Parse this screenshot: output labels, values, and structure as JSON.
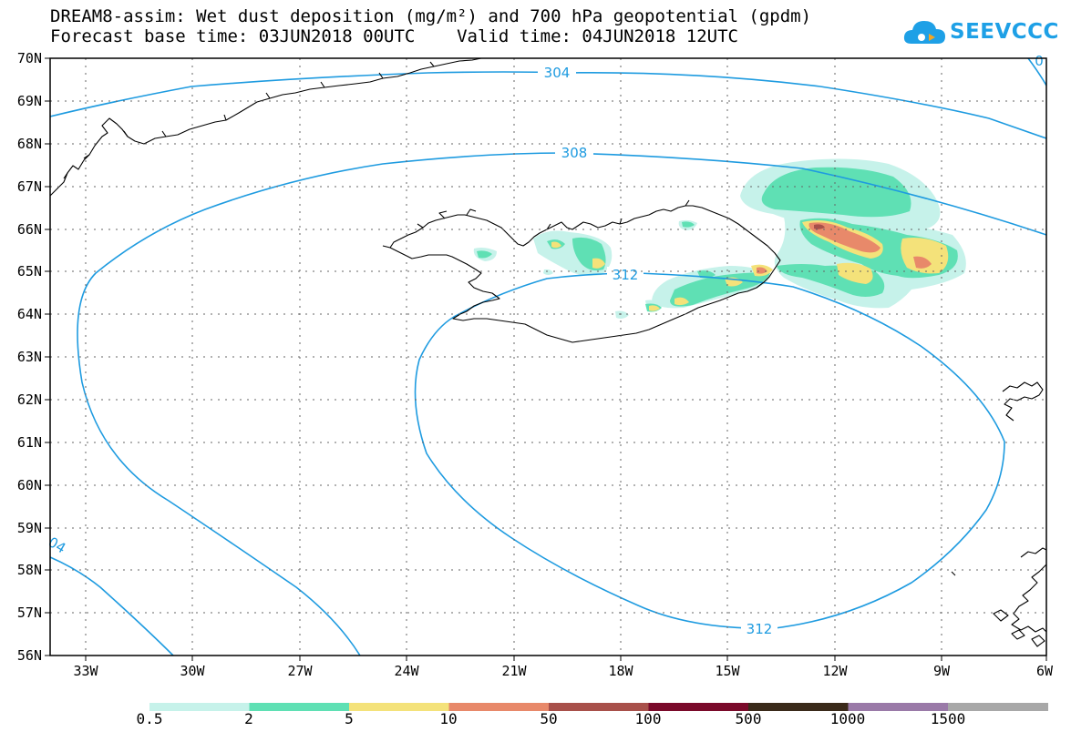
{
  "header": {
    "title_line1": "DREAM8-assim: Wet dust deposition (mg/m²) and 700 hPa geopotential (gpdm)",
    "title_line2": "Forecast base time: 03JUN2018 00UTC    Valid time: 04JUN2018 12UTC"
  },
  "logo": {
    "text": "SEEVCCC",
    "icon": "cloud-icon"
  },
  "map": {
    "lat_labels": [
      "70N",
      "69N",
      "68N",
      "67N",
      "66N",
      "65N",
      "64N",
      "63N",
      "62N",
      "61N",
      "60N",
      "59N",
      "58N",
      "57N",
      "56N"
    ],
    "lon_labels": [
      "33W",
      "30W",
      "27W",
      "24W",
      "21W",
      "18W",
      "15W",
      "12W",
      "9W",
      "6W"
    ],
    "contour_labels": [
      "304",
      "308",
      "312",
      "312",
      "04",
      "0"
    ],
    "contour_color": "#1e9be0",
    "coastline_color": "#000000",
    "grid": "dotted"
  },
  "legend": {
    "colors": [
      "#c6f2ea",
      "#5fe0b4",
      "#f4e27a",
      "#e8896a",
      "#a8504a",
      "#7a0a2a",
      "#3a2a1a",
      "#9a7aa8",
      "#a8a8a8"
    ],
    "labels": [
      "0.5",
      "2",
      "5",
      "10",
      "50",
      "100",
      "500",
      "1000",
      "1500"
    ]
  }
}
